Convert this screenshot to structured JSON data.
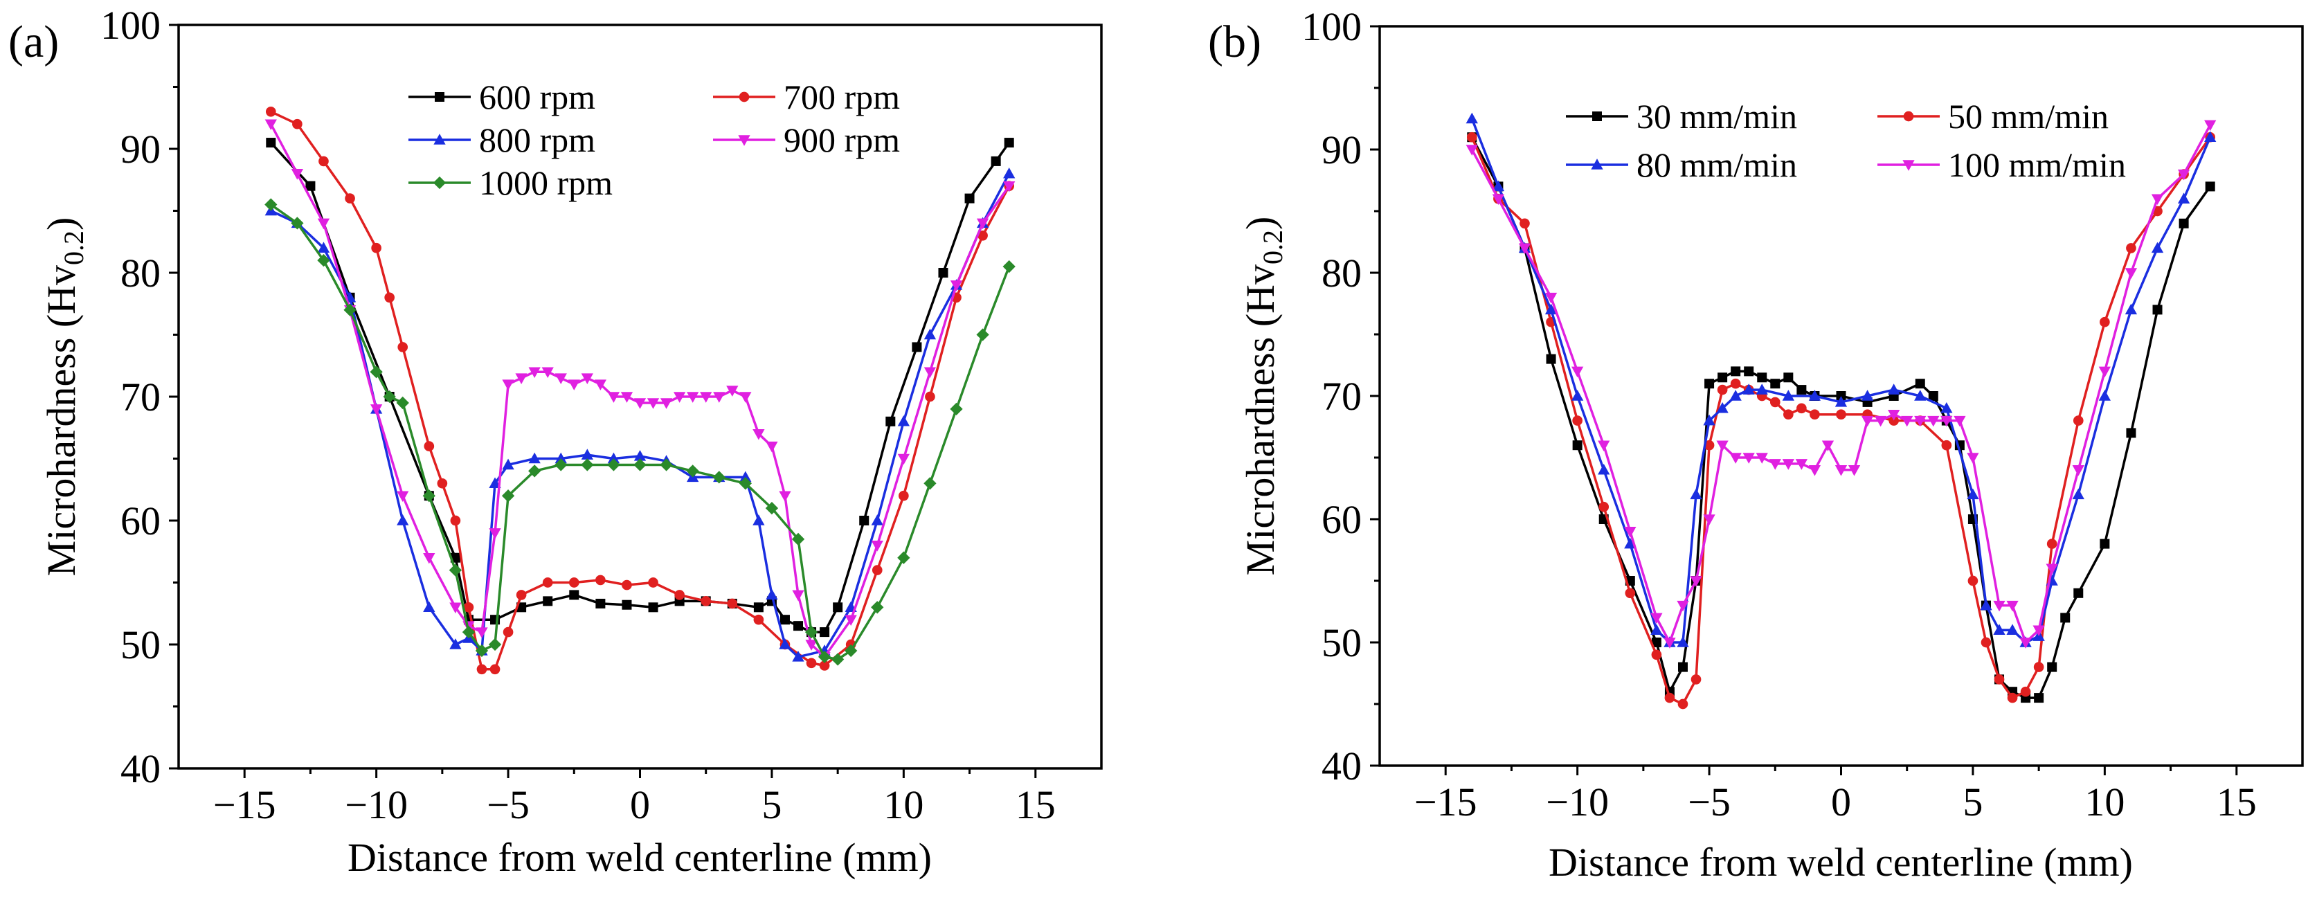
{
  "chart_data": [
    {
      "type": "line",
      "panel_label": "(a)",
      "xlabel": "Distance from weld centerline (mm)",
      "ylabel_main": "Microhardness (Hv",
      "ylabel_sub": "0.2",
      "ylabel_close": ")",
      "xlim": [
        -17.5,
        17.5
      ],
      "ylim": [
        40,
        100
      ],
      "xticks": [
        -15,
        -10,
        -5,
        0,
        5,
        10,
        15
      ],
      "yticks": [
        40,
        50,
        60,
        70,
        80,
        90,
        100
      ],
      "xtick_labels": [
        "−15",
        "−10",
        "−5",
        "0",
        "5",
        "10",
        "15"
      ],
      "ytick_labels": [
        "40",
        "50",
        "60",
        "70",
        "80",
        "90",
        "100"
      ],
      "legend_position": "top",
      "series": [
        {
          "name": "600 rpm",
          "color": "#000000",
          "marker": "square",
          "x": [
            -14,
            -12.5,
            -11,
            -9.5,
            -8,
            -7,
            -6.5,
            -5.5,
            -4.5,
            -3.5,
            -2.5,
            -1.5,
            -0.5,
            0.5,
            1.5,
            2.5,
            3.5,
            4.5,
            5,
            5.5,
            6,
            6.5,
            7,
            7.5,
            8.5,
            9.5,
            10.5,
            11.5,
            12.5,
            13.5,
            14
          ],
          "values": [
            90.5,
            87,
            78,
            70,
            62,
            57,
            52,
            52,
            53,
            53.5,
            54,
            53.3,
            53.2,
            53,
            53.5,
            53.5,
            53.3,
            53,
            53.5,
            52,
            51.5,
            51,
            51,
            53,
            60,
            68,
            74,
            80,
            86,
            89,
            90.5
          ]
        },
        {
          "name": "700 rpm",
          "color": "#e02020",
          "marker": "circle",
          "x": [
            -14,
            -13,
            -12,
            -11,
            -10,
            -9.5,
            -9,
            -8,
            -7.5,
            -7,
            -6.5,
            -6,
            -5.5,
            -5,
            -4.5,
            -3.5,
            -2.5,
            -1.5,
            -0.5,
            0.5,
            1.5,
            2.5,
            3.5,
            4.5,
            5.5,
            6.5,
            7,
            8,
            9,
            10,
            11,
            12,
            13,
            14
          ],
          "values": [
            93,
            92,
            89,
            86,
            82,
            78,
            74,
            66,
            63,
            60,
            53,
            48,
            48,
            51,
            54,
            55,
            55,
            55.2,
            54.8,
            55,
            54,
            53.5,
            53.3,
            52,
            50,
            48.5,
            48.3,
            50,
            56,
            62,
            70,
            78,
            83,
            87
          ]
        },
        {
          "name": "800 rpm",
          "color": "#1a2ee0",
          "marker": "triangle-up",
          "x": [
            -14,
            -13,
            -12,
            -11,
            -10,
            -9,
            -8,
            -7,
            -6.5,
            -6,
            -5.5,
            -5,
            -4,
            -3,
            -2,
            -1,
            0,
            1,
            2,
            3,
            4,
            4.5,
            5,
            5.5,
            6,
            7,
            8,
            9,
            10,
            11,
            12,
            13,
            14
          ],
          "values": [
            85,
            84,
            82,
            78,
            69,
            60,
            53,
            50,
            50.5,
            49.5,
            63,
            64.5,
            65,
            65,
            65.3,
            65,
            65.2,
            64.8,
            63.5,
            63.5,
            63.5,
            60,
            54,
            50,
            49,
            49.5,
            53,
            60,
            68,
            75,
            79,
            84,
            88
          ]
        },
        {
          "name": "900 rpm",
          "color": "#e020e0",
          "marker": "triangle-down",
          "x": [
            -14,
            -13,
            -12,
            -11,
            -10,
            -9,
            -8,
            -7,
            -6.5,
            -6,
            -5.5,
            -5,
            -4.5,
            -4,
            -3.5,
            -3,
            -2.5,
            -2,
            -1.5,
            -1,
            -0.5,
            0,
            0.5,
            1,
            1.5,
            2,
            2.5,
            3,
            3.5,
            4,
            4.5,
            5,
            5.5,
            6,
            6.5,
            7,
            8,
            9,
            10,
            11,
            12,
            13,
            14
          ],
          "values": [
            92,
            88,
            84,
            77,
            69,
            62,
            57,
            53,
            51.5,
            51,
            59,
            71,
            71.5,
            72,
            72,
            71.5,
            71,
            71.5,
            71,
            70,
            70,
            69.5,
            69.5,
            69.5,
            70,
            70,
            70,
            70,
            70.5,
            70,
            67,
            66,
            62,
            54,
            50,
            49,
            52,
            58,
            65,
            72,
            79,
            84,
            87
          ]
        },
        {
          "name": "1000 rpm",
          "color": "#2a8a2a",
          "marker": "diamond",
          "x": [
            -14,
            -13,
            -12,
            -11,
            -10,
            -9.5,
            -9,
            -8,
            -7,
            -6.5,
            -6,
            -5.5,
            -5,
            -4,
            -3,
            -2,
            -1,
            0,
            1,
            2,
            3,
            4,
            5,
            6,
            6.5,
            7,
            7.5,
            8,
            9,
            10,
            11,
            12,
            13,
            14
          ],
          "values": [
            85.5,
            84,
            81,
            77,
            72,
            70,
            69.5,
            62,
            56,
            51,
            49.5,
            50,
            62,
            64,
            64.5,
            64.5,
            64.5,
            64.5,
            64.5,
            64,
            63.5,
            63,
            61,
            58.5,
            51,
            49,
            48.8,
            49.5,
            53,
            57,
            63,
            69,
            75,
            80.5
          ]
        }
      ]
    },
    {
      "type": "line",
      "panel_label": "(b)",
      "xlabel": "Distance from weld centerline (mm)",
      "ylabel_main": "Microhardness (Hv",
      "ylabel_sub": "0.2",
      "ylabel_close": ")",
      "xlim": [
        -17.5,
        17.5
      ],
      "ylim": [
        40,
        100
      ],
      "xticks": [
        -15,
        -10,
        -5,
        0,
        5,
        10,
        15
      ],
      "yticks": [
        40,
        50,
        60,
        70,
        80,
        90,
        100
      ],
      "xtick_labels": [
        "−15",
        "−10",
        "−5",
        "0",
        "5",
        "10",
        "15"
      ],
      "ytick_labels": [
        "40",
        "50",
        "60",
        "70",
        "80",
        "90",
        "100"
      ],
      "legend_position": "top",
      "series": [
        {
          "name": "30 mm/min",
          "color": "#000000",
          "marker": "square",
          "x": [
            -14,
            -13,
            -12,
            -11,
            -10,
            -9,
            -8,
            -7,
            -6.5,
            -6,
            -5.5,
            -5,
            -4.5,
            -4,
            -3.5,
            -3,
            -2.5,
            -2,
            -1.5,
            -1,
            0,
            1,
            2,
            3,
            3.5,
            4,
            4.5,
            5,
            5.5,
            6,
            6.5,
            7,
            7.5,
            8,
            8.5,
            9,
            10,
            11,
            12,
            13,
            14
          ],
          "values": [
            91,
            87,
            82,
            73,
            66,
            60,
            55,
            50,
            46,
            48,
            55,
            71,
            71.5,
            72,
            72,
            71.5,
            71,
            71.5,
            70.5,
            70,
            70,
            69.5,
            70,
            71,
            70,
            68,
            66,
            60,
            53,
            47,
            46,
            45.5,
            45.5,
            48,
            52,
            54,
            58,
            67,
            77,
            84,
            87
          ]
        },
        {
          "name": "50 mm/min",
          "color": "#e02020",
          "marker": "circle",
          "x": [
            -14,
            -13,
            -12,
            -11,
            -10,
            -9,
            -8,
            -7,
            -6.5,
            -6,
            -5.5,
            -5,
            -4.5,
            -4,
            -3.5,
            -3,
            -2.5,
            -2,
            -1.5,
            -1,
            0,
            1,
            2,
            3,
            4,
            5,
            5.5,
            6,
            6.5,
            7,
            7.5,
            8,
            9,
            10,
            11,
            12,
            13,
            14
          ],
          "values": [
            91,
            86,
            84,
            76,
            68,
            61,
            54,
            49,
            45.5,
            45,
            47,
            66,
            70.5,
            71,
            70.5,
            70,
            69.5,
            68.5,
            69,
            68.5,
            68.5,
            68.5,
            68,
            68,
            66,
            55,
            50,
            47,
            45.5,
            46,
            48,
            58,
            68,
            76,
            82,
            85,
            88,
            91
          ]
        },
        {
          "name": "80 mm/min",
          "color": "#1a2ee0",
          "marker": "triangle-up",
          "x": [
            -14,
            -13,
            -12,
            -11,
            -10,
            -9,
            -8,
            -7,
            -6.5,
            -6,
            -5.5,
            -5,
            -4.5,
            -4,
            -3.5,
            -3,
            -2,
            -1,
            0,
            1,
            2,
            3,
            4,
            5,
            5.5,
            6,
            6.5,
            7,
            7.5,
            8,
            9,
            10,
            11,
            12,
            13,
            14
          ],
          "values": [
            92.5,
            87,
            82,
            77,
            70,
            64,
            58,
            51,
            50,
            50,
            62,
            68,
            69,
            70,
            70.5,
            70.5,
            70,
            70,
            69.5,
            70,
            70.5,
            70,
            69,
            62,
            53,
            51,
            51,
            50,
            50.5,
            55,
            62,
            70,
            77,
            82,
            86,
            91
          ]
        },
        {
          "name": "100 mm/min",
          "color": "#e020e0",
          "marker": "triangle-down",
          "x": [
            -14,
            -13,
            -12,
            -11,
            -10,
            -9,
            -8,
            -7,
            -6.5,
            -6,
            -5.5,
            -5,
            -4.5,
            -4,
            -3.5,
            -3,
            -2.5,
            -2,
            -1.5,
            -1,
            -0.5,
            0,
            0.5,
            1,
            1.5,
            2,
            2.5,
            3,
            3.5,
            4,
            4.5,
            5,
            6,
            6.5,
            7,
            7.5,
            8,
            9,
            10,
            11,
            12,
            13,
            14
          ],
          "values": [
            90,
            86,
            82,
            78,
            72,
            66,
            59,
            52,
            50,
            53,
            55,
            60,
            66,
            65,
            65,
            65,
            64.5,
            64.5,
            64.5,
            64,
            66,
            64,
            64,
            68,
            68,
            68.5,
            68,
            68,
            68,
            68,
            68,
            65,
            53,
            53,
            50,
            51,
            56,
            64,
            72,
            80,
            86,
            88,
            92
          ]
        }
      ]
    }
  ]
}
